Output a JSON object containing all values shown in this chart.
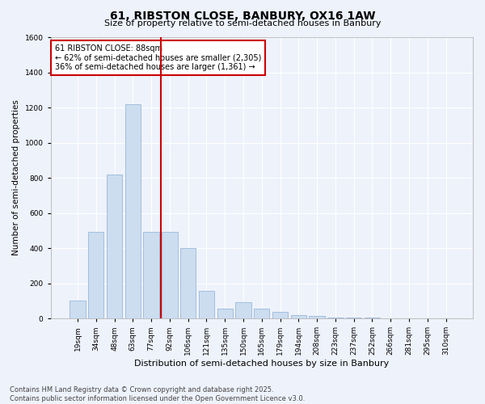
{
  "title_line1": "61, RIBSTON CLOSE, BANBURY, OX16 1AW",
  "title_line2": "Size of property relative to semi-detached houses in Banbury",
  "xlabel": "Distribution of semi-detached houses by size in Banbury",
  "ylabel": "Number of semi-detached properties",
  "categories": [
    "19sqm",
    "34sqm",
    "48sqm",
    "63sqm",
    "77sqm",
    "92sqm",
    "106sqm",
    "121sqm",
    "135sqm",
    "150sqm",
    "165sqm",
    "179sqm",
    "194sqm",
    "208sqm",
    "223sqm",
    "237sqm",
    "252sqm",
    "266sqm",
    "281sqm",
    "295sqm",
    "310sqm"
  ],
  "values": [
    100,
    490,
    820,
    1220,
    490,
    490,
    400,
    155,
    55,
    90,
    55,
    35,
    20,
    15,
    5,
    5,
    3,
    2,
    2,
    1,
    1
  ],
  "bar_color": "#ccddf0",
  "bar_edgecolor": "#9ab8d8",
  "vline_x": 4.5,
  "vline_color": "#cc0000",
  "ylim": [
    0,
    1600
  ],
  "yticks": [
    0,
    200,
    400,
    600,
    800,
    1000,
    1200,
    1400,
    1600
  ],
  "annotation_title": "61 RIBSTON CLOSE: 88sqm",
  "annotation_line1": "← 62% of semi-detached houses are smaller (2,305)",
  "annotation_line2": "36% of semi-detached houses are larger (1,361) →",
  "annotation_box_color": "#ffffff",
  "annotation_box_edgecolor": "#cc0000",
  "footer_line1": "Contains HM Land Registry data © Crown copyright and database right 2025.",
  "footer_line2": "Contains public sector information licensed under the Open Government Licence v3.0.",
  "background_color": "#eef2fb",
  "plot_bg_color": "#eef2fb",
  "fig_width": 6.0,
  "fig_height": 5.0,
  "dpi": 100
}
